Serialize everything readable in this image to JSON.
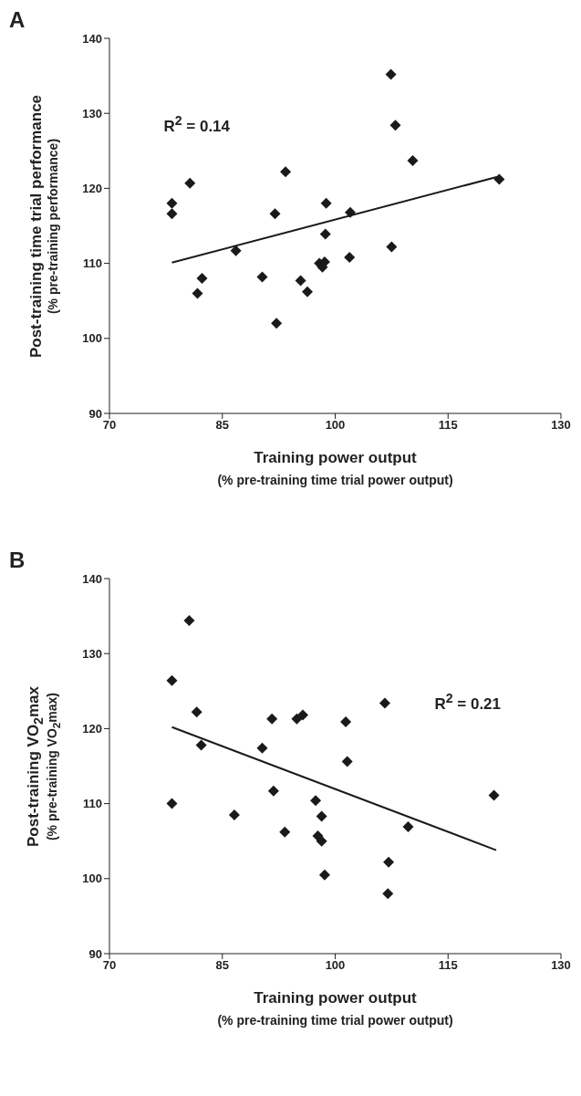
{
  "chart_data": [
    {
      "type": "scatter",
      "title": "A",
      "xlabel": "Training power output\n(% pre-training time trial power output)",
      "ylabel": "Post-training time trial performance\n(% pre-training performance)",
      "annotations": [
        "R$^{2}$ = 0.14"
      ],
      "xlim": [
        70,
        130
      ],
      "xticks": [
        70,
        85,
        100,
        115,
        130
      ],
      "ylim": [
        90,
        140
      ],
      "yticks": [
        90,
        100,
        110,
        120,
        130,
        140
      ],
      "grid": false,
      "series": [
        {
          "color": "#1a1a1a",
          "marker": "diamond",
          "x": [
            78.3,
            78.3,
            80.7,
            81.7,
            82.3,
            86.8,
            90.3,
            92.2,
            92.0,
            93.4,
            95.4,
            96.3,
            97.9,
            98.3,
            98.6,
            98.7,
            98.8,
            101.9,
            102.0,
            107.4,
            107.5,
            108.0,
            110.3,
            121.8
          ],
          "values": [
            118,
            116.6,
            120.7,
            106,
            108,
            111.7,
            108.2,
            102,
            116.6,
            122.2,
            107.7,
            106.2,
            110,
            109.5,
            110.2,
            113.9,
            118,
            110.8,
            116.8,
            135.2,
            112.2,
            128.4,
            123.7,
            121.2
          ]
        },
        {
          "type": "line",
          "marker": "none",
          "color": "#1a1a1a",
          "x": [
            78.3,
            121.8
          ],
          "values": [
            110.1,
            121.6
          ]
        }
      ]
    },
    {
      "type": "scatter",
      "title": "B",
      "xlabel": "Training power output\n(% pre-training time trial power output)",
      "ylabel": "Post-training VO$_{2}$max\n(% pre-training VO$_{2}$max)",
      "annotations": [
        "R$^{2}$ = 0.21"
      ],
      "xlim": [
        70,
        130
      ],
      "xticks": [
        70,
        85,
        100,
        115,
        130
      ],
      "ylim": [
        90,
        140
      ],
      "yticks": [
        90,
        100,
        110,
        120,
        130,
        140
      ],
      "grid": false,
      "series": [
        {
          "color": "#1a1a1a",
          "marker": "diamond",
          "x": [
            78.3,
            78.3,
            80.6,
            81.6,
            82.2,
            86.6,
            90.3,
            91.6,
            91.8,
            93.3,
            94.9,
            95.7,
            97.4,
            97.7,
            98.2,
            98.2,
            98.6,
            101.4,
            101.6,
            106.6,
            107.1,
            107.0,
            109.7,
            121.1
          ],
          "values": [
            126.4,
            110,
            134.4,
            122.2,
            117.8,
            108.5,
            117.4,
            121.3,
            111.7,
            106.2,
            121.3,
            121.8,
            110.4,
            105.7,
            105.0,
            108.3,
            100.5,
            120.9,
            115.6,
            123.4,
            102.2,
            98,
            106.9,
            111.1
          ]
        },
        {
          "type": "line",
          "marker": "none",
          "color": "#1a1a1a",
          "x": [
            78.3,
            121.4
          ],
          "values": [
            120.2,
            103.8
          ]
        }
      ]
    }
  ]
}
